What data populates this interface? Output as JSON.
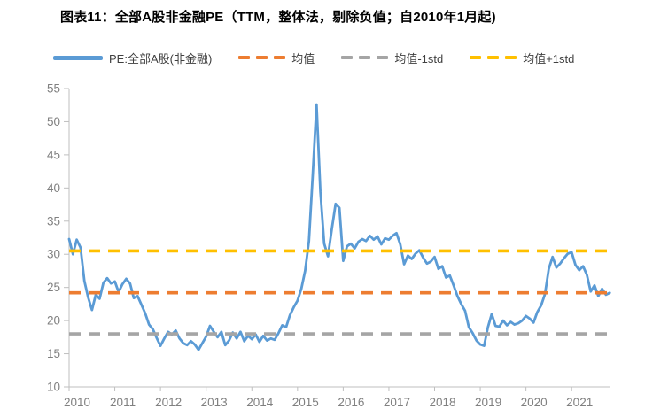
{
  "title": "图表11：全部A股非金融PE（TTM，整体法，剔除负值；自2010年1月起)",
  "legend": {
    "items": [
      {
        "label": "PE:全部A股(非金融)",
        "color": "#5B9BD5",
        "style": "solid"
      },
      {
        "label": "均值",
        "color": "#ED7D31",
        "style": "dashed"
      },
      {
        "label": "均值-1std",
        "color": "#A5A5A5",
        "style": "dashed"
      },
      {
        "label": "均值+1std",
        "color": "#FFC000",
        "style": "dashed"
      }
    ]
  },
  "chart_data": {
    "type": "line",
    "title": "图表11：全部A股非金融PE（TTM，整体法，剔除负值；自2010年1月起)",
    "xlabel": "",
    "ylabel": "",
    "ylim": [
      10,
      55
    ],
    "yticks": [
      10,
      15,
      20,
      25,
      30,
      35,
      40,
      45,
      50,
      55
    ],
    "xticks": [
      2010,
      2011,
      2012,
      2013,
      2014,
      2015,
      2016,
      2017,
      2018,
      2019,
      2020,
      2021
    ],
    "grid": false,
    "legend_position": "top",
    "x_start_year": 2010,
    "x_start_month": 1,
    "x_frequency": "monthly",
    "series": [
      {
        "name": "PE:全部A股(非金融)",
        "color": "#5B9BD5",
        "values": [
          32.3,
          30.0,
          32.2,
          31.0,
          26.0,
          23.5,
          21.6,
          23.9,
          23.3,
          25.7,
          26.4,
          25.6,
          25.9,
          24.3,
          25.5,
          26.3,
          25.6,
          23.4,
          23.7,
          22.4,
          21.1,
          19.4,
          18.7,
          17.4,
          16.2,
          17.3,
          18.3,
          17.9,
          18.5,
          17.3,
          16.6,
          16.3,
          16.9,
          16.4,
          15.6,
          16.6,
          17.6,
          19.2,
          18.3,
          17.5,
          18.3,
          16.3,
          17.0,
          18.2,
          17.3,
          18.3,
          16.9,
          17.7,
          17.2,
          17.9,
          16.8,
          17.7,
          17.0,
          17.3,
          17.1,
          18.1,
          19.3,
          19.0,
          20.8,
          22.0,
          23.0,
          24.8,
          27.5,
          32.0,
          42.0,
          52.6,
          39.5,
          31.6,
          29.7,
          33.8,
          37.6,
          37.0,
          29.0,
          31.2,
          31.6,
          30.9,
          31.9,
          32.3,
          32.0,
          32.8,
          32.2,
          32.7,
          31.5,
          32.4,
          32.2,
          32.8,
          33.2,
          31.5,
          28.5,
          29.8,
          29.3,
          30.1,
          30.6,
          29.5,
          28.6,
          28.9,
          29.6,
          27.8,
          28.2,
          26.5,
          26.8,
          25.3,
          23.7,
          22.5,
          21.5,
          19.0,
          18.1,
          17.0,
          16.4,
          16.2,
          19.0,
          21.0,
          19.2,
          19.1,
          20.0,
          19.3,
          19.8,
          19.4,
          19.6,
          20.0,
          20.7,
          20.3,
          19.7,
          21.3,
          22.3,
          24.0,
          27.8,
          29.6,
          28.0,
          28.6,
          29.4,
          30.1,
          30.3,
          28.4,
          27.6,
          28.2,
          26.9,
          24.4,
          25.3,
          23.7,
          24.8,
          23.9,
          24.2
        ]
      }
    ],
    "reference_lines": [
      {
        "name": "均值",
        "value": 24.2,
        "color": "#ED7D31",
        "style": "dashed"
      },
      {
        "name": "均值-1std",
        "value": 18.0,
        "color": "#A5A5A5",
        "style": "dashed"
      },
      {
        "name": "均值+1std",
        "value": 30.5,
        "color": "#FFC000",
        "style": "dashed"
      }
    ],
    "axis_color": "#BFBFBF",
    "tick_label_color": "#808080"
  }
}
